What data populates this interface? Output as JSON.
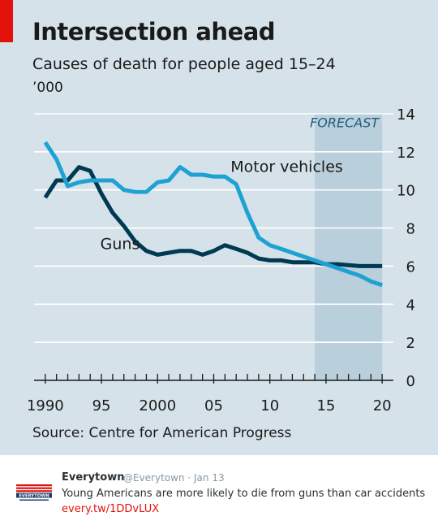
{
  "header": {
    "title": "Intersection ahead",
    "subtitle": "Causes of death for people aged 15–24",
    "unit": "’000"
  },
  "source": "Source: Centre for American Progress",
  "forecast_label": "FORECAST",
  "colors": {
    "background": "#d5e2e9",
    "forecast_band": "#b9cfdb",
    "guns": "#003a52",
    "motor_vehicles": "#1ea2d4",
    "accent": "#e3120b"
  },
  "chart_data": {
    "type": "line",
    "title": "Intersection ahead",
    "subtitle": "Causes of death for people aged 15–24",
    "ylabel": "’000",
    "xlim": [
      1989,
      2021
    ],
    "ylim": [
      0,
      14
    ],
    "y_ticks": [
      0,
      2,
      4,
      6,
      8,
      10,
      12,
      14
    ],
    "y_tick_labels": [
      "0",
      "2",
      "4",
      "6",
      "8",
      "10",
      "12",
      "14"
    ],
    "x_ticks": [
      1990,
      1995,
      2000,
      2005,
      2010,
      2015,
      2020
    ],
    "x_tick_labels": [
      "1990",
      "95",
      "2000",
      "05",
      "10",
      "15",
      "20"
    ],
    "y_axis_position": "right",
    "grid": true,
    "forecast_range": [
      2014,
      2020
    ],
    "series": [
      {
        "name": "Motor vehicles",
        "x": [
          1990,
          1991,
          1992,
          1993,
          1994,
          1995,
          1996,
          1997,
          1998,
          1999,
          2000,
          2001,
          2002,
          2003,
          2004,
          2005,
          2006,
          2007,
          2008,
          2009,
          2010,
          2011,
          2012,
          2013,
          2014,
          2015,
          2016,
          2017,
          2018,
          2019,
          2020
        ],
        "values": [
          12.5,
          11.6,
          10.2,
          10.4,
          10.5,
          10.5,
          10.5,
          10.0,
          9.9,
          9.9,
          10.4,
          10.5,
          11.2,
          10.8,
          10.8,
          10.7,
          10.7,
          10.3,
          8.8,
          7.5,
          7.1,
          6.9,
          6.7,
          6.5,
          6.3,
          6.1,
          5.9,
          5.7,
          5.5,
          5.2,
          5.0
        ]
      },
      {
        "name": "Guns",
        "x": [
          1990,
          1991,
          1992,
          1993,
          1994,
          1995,
          1996,
          1997,
          1998,
          1999,
          2000,
          2001,
          2002,
          2003,
          2004,
          2005,
          2006,
          2007,
          2008,
          2009,
          2010,
          2011,
          2012,
          2013,
          2014,
          2015,
          2016,
          2017,
          2018,
          2019,
          2020
        ],
        "values": [
          9.6,
          10.5,
          10.5,
          11.2,
          11.0,
          9.8,
          8.8,
          8.1,
          7.3,
          6.8,
          6.6,
          6.7,
          6.8,
          6.8,
          6.6,
          6.8,
          7.1,
          6.9,
          6.7,
          6.4,
          6.3,
          6.3,
          6.2,
          6.2,
          6.2,
          6.1,
          6.1,
          6.05,
          6.0,
          6.0,
          6.0
        ]
      }
    ]
  },
  "tweet": {
    "name": "Everytown",
    "handle": "@Everytown · Jan 13",
    "text": "Young Americans are more likely to die from guns than car accidents",
    "link": "every.tw/1DDvLUX",
    "avatar_label": "EVERYTOWN",
    "avatar_icon": "flag-logo-icon"
  }
}
